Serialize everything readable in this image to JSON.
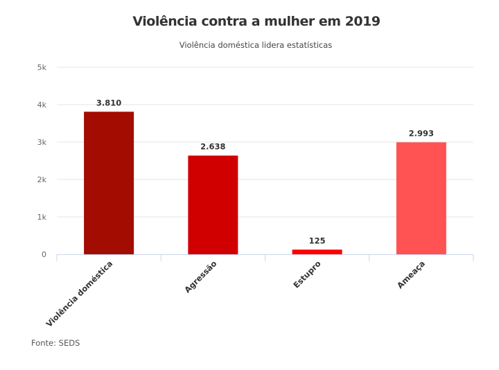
{
  "chart_data": {
    "type": "bar",
    "title": "Violência contra a mulher em 2019",
    "subtitle": "Violência doméstica lidera estatísticas",
    "categories": [
      "Violência doméstica",
      "Agressão",
      "Estupro",
      "Ameaça"
    ],
    "values": [
      3810,
      2638,
      125,
      2993
    ],
    "data_labels": [
      "3.810",
      "2.638",
      "125",
      "2.993"
    ],
    "colors": [
      "#a30c00",
      "#d10000",
      "#ff0000",
      "#ff5252"
    ],
    "ylim": [
      0,
      5000
    ],
    "yticks": [
      0,
      1000,
      2000,
      3000,
      4000,
      5000
    ],
    "ytick_labels": [
      "0",
      "1k",
      "2k",
      "3k",
      "4k",
      "5k"
    ],
    "xlabel": "",
    "ylabel": "",
    "grid": true,
    "legend": "none",
    "source": "Fonte: SEDS"
  }
}
